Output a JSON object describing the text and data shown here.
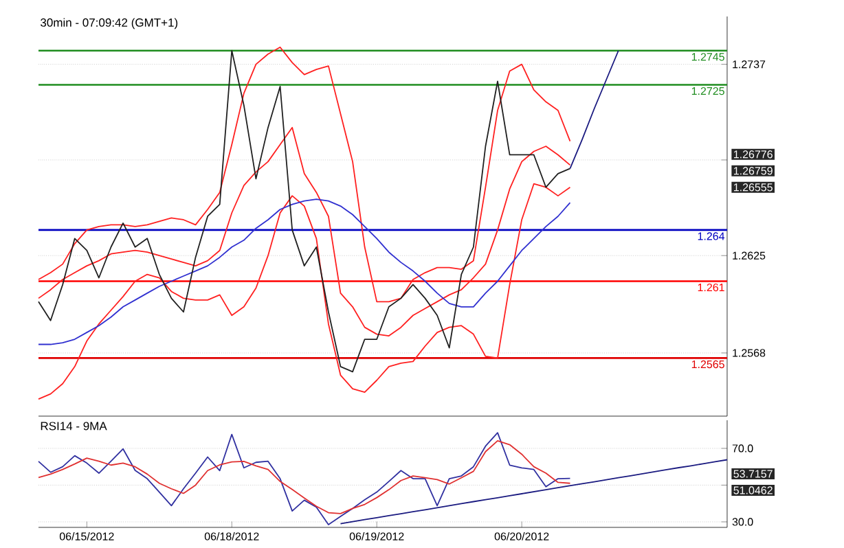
{
  "chart_data": [
    {
      "type": "line",
      "title": "30min - 07:09:42 (GMT+1)",
      "categories": [
        null,
        null,
        null,
        null,
        null,
        null,
        null,
        null,
        null,
        null,
        null,
        null,
        null,
        null,
        null,
        null,
        null,
        null,
        null,
        null,
        null,
        null,
        null,
        null,
        null,
        null,
        null,
        null,
        null,
        null,
        null,
        null,
        null,
        null,
        null,
        null,
        null,
        null,
        null,
        null,
        null,
        null,
        null,
        null,
        null,
        null,
        null,
        null,
        null,
        null,
        null,
        null,
        null,
        null,
        null,
        null,
        null,
        null
      ],
      "ylim": [
        1.2531,
        1.2765
      ],
      "yticks": [
        1.2737,
        {
          "value": 1.2681,
          "label": null
        },
        1.2625,
        1.2568
      ],
      "grid": "y",
      "tick_labels": "y",
      "series": [
        {
          "color": "#ff2020",
          "values": [
            1.2541,
            1.2544,
            1.255,
            1.256,
            1.2575,
            1.2585,
            1.2593,
            1.2601,
            1.261,
            1.2614,
            1.2612,
            1.2604,
            1.26,
            1.2599,
            1.2599,
            1.2602,
            1.259,
            1.2595,
            1.2606,
            1.2625,
            1.265,
            1.266,
            1.2654,
            1.2635,
            1.2585,
            1.2555,
            1.2547,
            1.2545,
            1.2552,
            1.256,
            1.2562,
            1.2563,
            1.2572,
            1.258,
            1.2583,
            1.2584,
            1.2579,
            1.2566,
            1.2565,
            1.2608,
            1.2646,
            1.2667,
            1.2665,
            1.266,
            1.2665,
            null,
            null,
            null,
            null,
            null,
            null,
            null,
            null,
            null,
            null,
            null,
            null,
            null
          ]
        },
        {
          "color": "#ff2020",
          "values": [
            1.2611,
            1.2615,
            1.262,
            1.2632,
            1.264,
            1.2642,
            1.2643,
            1.2643,
            1.2642,
            1.2643,
            1.2645,
            1.2647,
            1.2646,
            1.2643,
            1.2652,
            1.2662,
            1.269,
            1.272,
            1.2737,
            1.2743,
            1.2747,
            1.2738,
            1.2731,
            1.2734,
            1.2736,
            1.2708,
            1.268,
            1.263,
            1.2598,
            1.2598,
            1.26,
            1.2611,
            1.2615,
            1.2618,
            1.2618,
            1.2617,
            1.2622,
            1.2665,
            1.271,
            1.2733,
            1.2737,
            1.2722,
            1.2715,
            1.271,
            1.2692,
            null,
            null,
            null,
            null,
            null,
            null,
            null,
            null,
            null,
            null,
            null,
            null,
            null
          ]
        },
        {
          "color": "#ff2020",
          "values": [
            1.26,
            1.2605,
            1.2611,
            1.2615,
            1.2619,
            1.2622,
            1.2626,
            1.2627,
            1.2628,
            1.2627,
            1.2625,
            1.2623,
            1.2621,
            1.2619,
            1.2622,
            1.2628,
            1.265,
            1.2666,
            1.2674,
            1.268,
            1.269,
            1.27,
            1.2673,
            1.2662,
            1.2648,
            1.2603,
            1.2595,
            1.2583,
            1.2579,
            1.2578,
            1.2583,
            1.259,
            1.2594,
            1.2598,
            1.2602,
            1.2605,
            1.2612,
            1.262,
            1.264,
            1.2664,
            1.268,
            1.2686,
            1.2689,
            1.2684,
            1.2678,
            null,
            null,
            null,
            null,
            null,
            null,
            null,
            null,
            null,
            null,
            null,
            null,
            null
          ]
        },
        {
          "color": "#3030d0",
          "values": [
            1.2573,
            1.2573,
            1.2574,
            1.2576,
            1.258,
            1.2584,
            1.2589,
            1.2595,
            1.2599,
            1.2603,
            1.2607,
            1.261,
            1.2613,
            1.2616,
            1.2619,
            1.2624,
            1.263,
            1.2634,
            1.2641,
            1.2646,
            1.2652,
            1.2655,
            1.2657,
            1.2658,
            1.2657,
            1.2654,
            1.2649,
            1.2642,
            1.2635,
            1.2627,
            1.2621,
            1.2616,
            1.261,
            1.2603,
            1.2597,
            1.2595,
            1.2595,
            1.2603,
            1.261,
            1.2619,
            1.2628,
            1.2635,
            1.2642,
            1.2648,
            1.2656,
            null,
            null,
            null,
            null,
            null,
            null,
            null,
            null,
            null,
            null,
            null,
            null,
            null
          ]
        },
        {
          "color": "#202020",
          "values": [
            1.2598,
            1.2587,
            1.2608,
            1.2635,
            1.2628,
            1.2612,
            1.263,
            1.2644,
            1.263,
            1.2635,
            1.2614,
            1.26,
            1.2592,
            1.2624,
            1.2648,
            1.2655,
            1.2745,
            1.2713,
            1.267,
            1.27,
            1.2724,
            1.264,
            1.2619,
            1.263,
            1.2592,
            1.256,
            1.2557,
            1.2576,
            1.2576,
            1.2595,
            1.26,
            1.2608,
            1.26,
            1.259,
            1.2571,
            1.2614,
            1.263,
            1.2689,
            1.2727,
            1.2684,
            1.2684,
            1.2684,
            1.2665,
            1.2673,
            1.2676,
            null,
            null,
            null,
            null,
            null,
            null,
            null,
            null,
            null,
            null,
            null,
            null,
            null
          ]
        },
        {
          "color": "#1a1a80",
          "values": [
            null,
            null,
            null,
            null,
            null,
            null,
            null,
            null,
            null,
            null,
            null,
            null,
            null,
            null,
            null,
            null,
            null,
            null,
            null,
            null,
            null,
            null,
            null,
            null,
            null,
            null,
            null,
            null,
            null,
            null,
            null,
            null,
            null,
            null,
            null,
            null,
            null,
            null,
            null,
            null,
            null,
            null,
            null,
            null,
            1.2676,
            1.2693,
            1.2711,
            1.2728,
            1.2745,
            null,
            null,
            null,
            null,
            null,
            null,
            null,
            null,
            null
          ]
        }
      ],
      "ref_lines": [
        {
          "axis": "y",
          "value": 1.2745,
          "label": "1.2745",
          "color": "#1e8c1e"
        },
        {
          "axis": "y",
          "value": 1.2725,
          "label": "1.2725",
          "color": "#1e8c1e"
        },
        {
          "axis": "y",
          "value": 1.264,
          "label": "1.264",
          "color": "#0000c0"
        },
        {
          "axis": "y",
          "value": 1.261,
          "label": "1.261",
          "color": "#ff0000"
        },
        {
          "axis": "y",
          "value": 1.2565,
          "label": "1.2565",
          "color": "#e00000"
        }
      ],
      "annotations": [
        "1.26776",
        "1.26759",
        "1.26555"
      ]
    },
    {
      "type": "line",
      "title": "RSI14 - 9MA",
      "categories": [
        null,
        null,
        null,
        null,
        "06/15/2012",
        null,
        null,
        null,
        null,
        null,
        null,
        null,
        null,
        null,
        null,
        null,
        "06/18/2012",
        null,
        null,
        null,
        null,
        null,
        null,
        null,
        null,
        null,
        null,
        null,
        "06/19/2012",
        null,
        null,
        null,
        null,
        null,
        null,
        null,
        null,
        null,
        null,
        null,
        "06/20/2012",
        null,
        null,
        null,
        null,
        null,
        null,
        null,
        null,
        null,
        null,
        null,
        null,
        null,
        null,
        null,
        null,
        null
      ],
      "ylim": [
        27,
        85.3
      ],
      "yticks": [
        {
          "value": 70,
          "label": "70.0"
        },
        {
          "value": 50,
          "label": null
        },
        {
          "value": 30,
          "label": "30.0"
        }
      ],
      "grid": "y",
      "series": [
        {
          "color": "#3030a0",
          "values": [
            62.9,
            57.0,
            60.0,
            66.0,
            62.0,
            56.5,
            63.0,
            69.7,
            58.0,
            53.5,
            46.2,
            38.8,
            48.0,
            56.5,
            65.3,
            57.9,
            77.6,
            59.4,
            62.4,
            63.0,
            53.5,
            35.9,
            41.8,
            38.0,
            28.5,
            33.0,
            37.3,
            42.0,
            46.2,
            52.0,
            57.9,
            53.5,
            53.5,
            38.8,
            53.5,
            55.0,
            60.0,
            71.2,
            78.5,
            60.9,
            59.4,
            58.5,
            49.1,
            53.5,
            53.7,
            null,
            null,
            null,
            null,
            null,
            null,
            null,
            null,
            null,
            null,
            null,
            null,
            null
          ]
        },
        {
          "color": "#e03030",
          "values": [
            54.1,
            56.0,
            58.5,
            61.5,
            64.7,
            63.0,
            60.9,
            62.0,
            60.0,
            56.0,
            51.0,
            48.0,
            45.5,
            50.0,
            57.9,
            61.0,
            62.6,
            62.9,
            60.5,
            58.5,
            52.0,
            47.6,
            43.0,
            38.5,
            35.0,
            34.5,
            37.3,
            39.5,
            43.2,
            47.5,
            52.5,
            55.0,
            54.0,
            53.0,
            50.6,
            54.0,
            57.5,
            68.2,
            74.1,
            72.0,
            66.8,
            60.0,
            56.5,
            51.5,
            51.0,
            null,
            null,
            null,
            null,
            null,
            null,
            null,
            null,
            null,
            null,
            null,
            null,
            null
          ]
        },
        {
          "color": "#1a1a80",
          "values": [
            null,
            null,
            null,
            null,
            null,
            null,
            null,
            null,
            null,
            null,
            null,
            null,
            null,
            null,
            null,
            null,
            null,
            null,
            null,
            null,
            null,
            null,
            null,
            null,
            null,
            29.0,
            30.1,
            31.2,
            32.3,
            33.4,
            34.4,
            35.5,
            36.6,
            37.7,
            38.8,
            39.9,
            41.0,
            42.1,
            43.1,
            44.2,
            45.3,
            46.4,
            47.5,
            48.6,
            49.7,
            50.8,
            51.8,
            52.9,
            54.0,
            55.1,
            56.2,
            57.3,
            58.4,
            59.5,
            60.5,
            61.6,
            62.7,
            63.8
          ]
        }
      ],
      "annotations": [
        "53.7157",
        "51.0462"
      ]
    }
  ]
}
